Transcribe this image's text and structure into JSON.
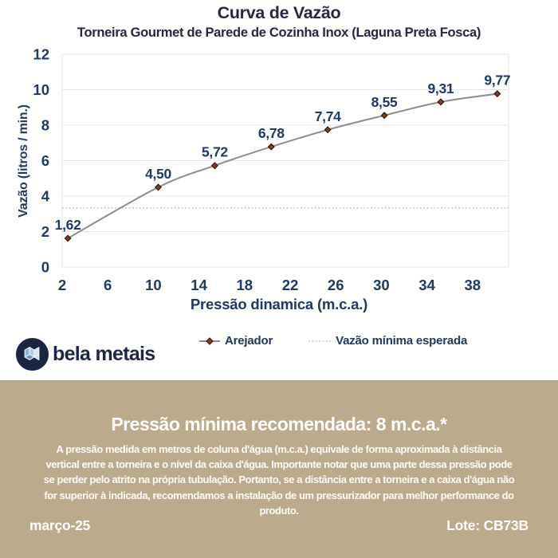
{
  "chart_data": {
    "type": "line",
    "title": "Curva de Vazão",
    "subtitle": "Torneira Gourmet de Parede de Cozinha Inox (Laguna Preta Fosca)",
    "xlabel": "Pressão dinamica (m.c.a.)",
    "ylabel": "Vazão (litros / min.)",
    "xlim": [
      1.5,
      41
    ],
    "ylim": [
      0,
      12
    ],
    "xticks": [
      2,
      6,
      10,
      14,
      18,
      22,
      26,
      30,
      34,
      38
    ],
    "yticks": [
      0,
      2,
      4,
      6,
      8,
      10,
      12
    ],
    "grid": "horizontal",
    "series": [
      {
        "name": "Arejador",
        "x": [
          2,
          10,
          15,
          20,
          25,
          30,
          35,
          40
        ],
        "values": [
          1.62,
          4.5,
          5.72,
          6.78,
          7.74,
          8.55,
          9.31,
          9.77
        ],
        "labels": [
          "1,62",
          "4,50",
          "5,72",
          "6,78",
          "7,74",
          "8,55",
          "9,31",
          "9,77"
        ]
      }
    ],
    "min_expected_line": {
      "name": "Vazão mínima esperada",
      "value": 3.33
    },
    "legend_position": "bottom"
  },
  "colors": {
    "navy": "#1f3864",
    "title": "#262640",
    "line": "#8c8c8c",
    "marker_fill": "#8f3a1d",
    "marker_edge": "#231208",
    "grid": "#e6e6e6",
    "dotted": "#a9b3c9",
    "panel_bg": "#bcaa8d",
    "panel_text": "#ffffff"
  },
  "legend": {
    "arejador_label": "Arejador",
    "min_line_label": "Vazão mínima esperada"
  },
  "logo": {
    "text": "bela metais"
  },
  "panel": {
    "heading": "Pressão mínima recomendada: 8 m.c.a.*",
    "body_lines": [
      "A pressão medida em metros de coluna d'água (m.c.a.) equivale de forma aproximada à distância",
      "vertical entre a torneira e o nível da caixa d'água. Importante notar que uma parte dessa pressão pode",
      "se perder pelo atrito na própria tubulação. Portanto, se a distância entre a torneira e a caixa d'água não",
      "for superior à indicada, recomendamos a instalação de um pressurizador para melhor performance do",
      "produto."
    ],
    "footer_left": "março-25",
    "footer_right": "Lote: CB73B"
  }
}
